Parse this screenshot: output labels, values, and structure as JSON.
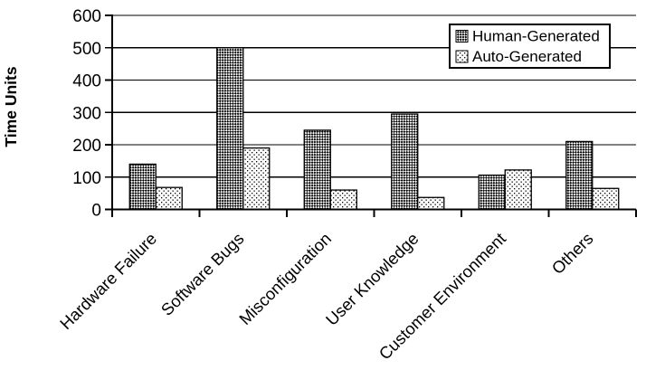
{
  "chart_data": {
    "type": "bar",
    "title": "",
    "xlabel": "",
    "ylabel": "Time Units",
    "ylim": [
      0,
      600
    ],
    "yticks": [
      0,
      100,
      200,
      300,
      400,
      500,
      600
    ],
    "grid": "horizontal",
    "legend_position": "top-right",
    "categories": [
      "Hardware Failure",
      "Software Bugs",
      "Misconfiguration",
      "User Knowledge",
      "Customer Environment",
      "Others"
    ],
    "series": [
      {
        "name": "Human-Generated",
        "pattern": "dark-diagonal-checker",
        "values": [
          140,
          500,
          245,
          295,
          106,
          210
        ]
      },
      {
        "name": "Auto-Generated",
        "pattern": "light-dots",
        "values": [
          68,
          190,
          60,
          37,
          122,
          65
        ]
      }
    ],
    "colors": {
      "foreground": "#000000",
      "background": "#ffffff"
    }
  }
}
